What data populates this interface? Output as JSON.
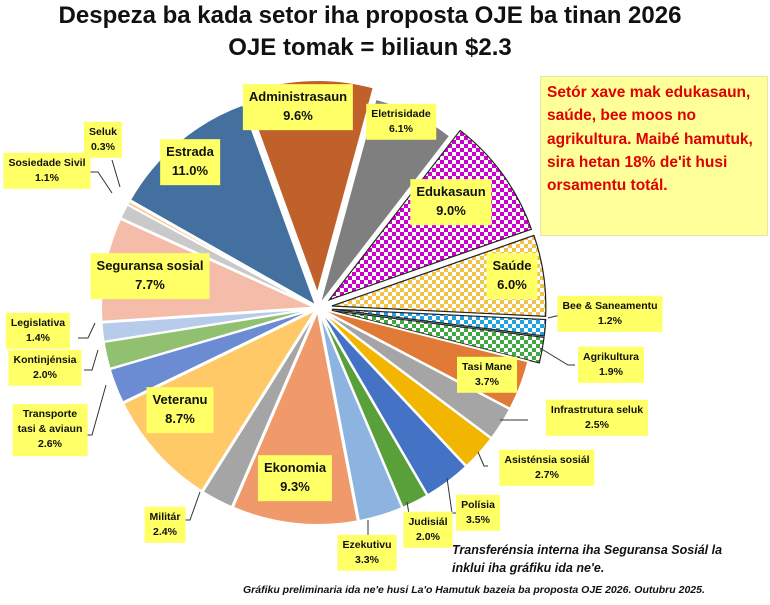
{
  "chart_data": {
    "type": "pie",
    "title": "Despeza ba kada setor iha proposta OJE ba tinan 2026",
    "subtitle": "OJE tomak = biliaun $2.3",
    "unit": "%",
    "slices": [
      {
        "label": "Administrasaun",
        "value": 9.6,
        "display": "9.6%",
        "color": "#c0612b",
        "exploded": true
      },
      {
        "label": "Eletrisidade",
        "value": 6.1,
        "display": "6.1%",
        "color": "#7f7f7f"
      },
      {
        "label": "Edukasaun",
        "value": 9.0,
        "display": "9.0%",
        "color": "#cc00cc",
        "pattern": "check",
        "exploded": true
      },
      {
        "label": "Saúde",
        "value": 6.0,
        "display": "6.0%",
        "color": "#f2c34a",
        "pattern": "check",
        "exploded": true
      },
      {
        "label": "Bee & Saneamentu",
        "value": 1.2,
        "display": "1.2%",
        "color": "#1fa3e0",
        "pattern": "check",
        "exploded": true
      },
      {
        "label": "Agrikultura",
        "value": 1.9,
        "display": "1.9%",
        "color": "#3fa845",
        "pattern": "check",
        "exploded": true
      },
      {
        "label": "Tasi Mane",
        "value": 3.7,
        "display": "3.7%",
        "color": "#e07a36"
      },
      {
        "label": "Infrastrutura seluk",
        "value": 2.5,
        "display": "2.5%",
        "color": "#a5a5a5"
      },
      {
        "label": "Asisténsia sosiál",
        "value": 2.7,
        "display": "2.7%",
        "color": "#f2b600"
      },
      {
        "label": "Polísia",
        "value": 3.5,
        "display": "3.5%",
        "color": "#4472c4"
      },
      {
        "label": "Judisiál",
        "value": 2.0,
        "display": "2.0%",
        "color": "#5aa03a"
      },
      {
        "label": "Ezekutivu",
        "value": 3.3,
        "display": "3.3%",
        "color": "#8db3e0"
      },
      {
        "label": "Ekonomia",
        "value": 9.3,
        "display": "9.3%",
        "color": "#f09a6c"
      },
      {
        "label": "Militár",
        "value": 2.4,
        "display": "2.4%",
        "color": "#a5a5a5"
      },
      {
        "label": "Veteranu",
        "value": 8.7,
        "display": "8.7%",
        "color": "#ffc967"
      },
      {
        "label": "Transporte tasi & aviaun",
        "value": 2.6,
        "display": "2.6%",
        "color": "#6b8bd3"
      },
      {
        "label": "Kontinjénsia",
        "value": 2.0,
        "display": "2.0%",
        "color": "#90c070"
      },
      {
        "label": "Legislativa",
        "value": 1.4,
        "display": "1.4%",
        "color": "#b7cbea"
      },
      {
        "label": "Seguransa sosial",
        "value": 7.7,
        "display": "7.7%",
        "color": "#f5bcaa"
      },
      {
        "label": "Sosiedade Sivil",
        "value": 1.1,
        "display": "1.1%",
        "color": "#c9c9c9"
      },
      {
        "label": "Seluk",
        "value": 0.3,
        "display": "0.3%",
        "color": "#f8cc9e"
      },
      {
        "label": "Estrada",
        "value": 11.0,
        "display": "11.0%",
        "color": "#43709e"
      }
    ],
    "callout": "Setór xave mak edukasaun, saúde, bee moos no agrikultura. Maibé hamutuk, sira hetan 18% de'it husi orsamentu totál.",
    "note": [
      "Transferénsia interna iha Seguransa Sosiál la",
      "inklui iha gráfiku ida ne'e."
    ],
    "footer": "Gráfiku preliminaria ida ne'e husi La'o Hamutuk bazeia ba proposta OJE 2026. Outubru 2025."
  }
}
